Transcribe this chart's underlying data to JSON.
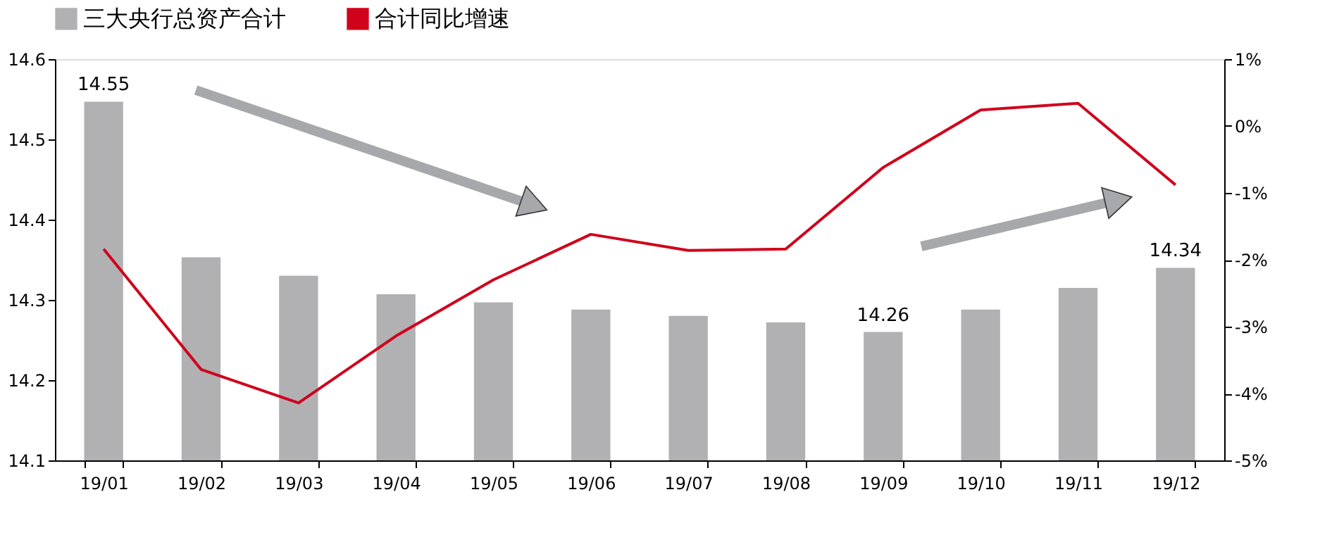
{
  "chart_data": {
    "type": "bar",
    "categories": [
      "19/01",
      "19/02",
      "19/03",
      "19/04",
      "19/05",
      "19/06",
      "19/07",
      "19/08",
      "19/09",
      "19/10",
      "19/11",
      "19/12"
    ],
    "series": [
      {
        "name": "三大央行总资产合计",
        "color": "#b1b0b2",
        "values": [
          14.547,
          14.353,
          14.33,
          14.307,
          14.297,
          14.288,
          14.28,
          14.272,
          14.26,
          14.288,
          14.315,
          14.34
        ],
        "value_labels": [
          "14.55",
          null,
          null,
          null,
          null,
          null,
          null,
          null,
          "14.26",
          null,
          null,
          "14.34"
        ]
      },
      {
        "name": "合计同比增速",
        "type": "line",
        "axis": "y2",
        "color": "#d0021b",
        "values": [
          -1.84,
          -3.64,
          -4.14,
          -3.14,
          -2.3,
          -1.62,
          -1.86,
          -1.84,
          -0.62,
          0.24,
          0.34,
          -0.88
        ]
      }
    ],
    "ylim": [
      14.1,
      14.6
    ],
    "yticks": [
      14.1,
      14.2,
      14.3,
      14.4,
      14.5,
      14.6
    ],
    "y2lim": [
      -5,
      1
    ],
    "y2ticks": [
      {
        "value": -5,
        "label": "-5%"
      },
      {
        "value": -4,
        "label": "-4%"
      },
      {
        "value": -3,
        "label": "-3%"
      },
      {
        "value": -2,
        "label": "-2%"
      },
      {
        "value": -1,
        "label": "-1%"
      },
      {
        "value": 0,
        "label": "0%"
      },
      {
        "value": 1,
        "label": "1%"
      }
    ],
    "legend": "top",
    "grid": false,
    "marker": "none",
    "line_style": "solid"
  }
}
